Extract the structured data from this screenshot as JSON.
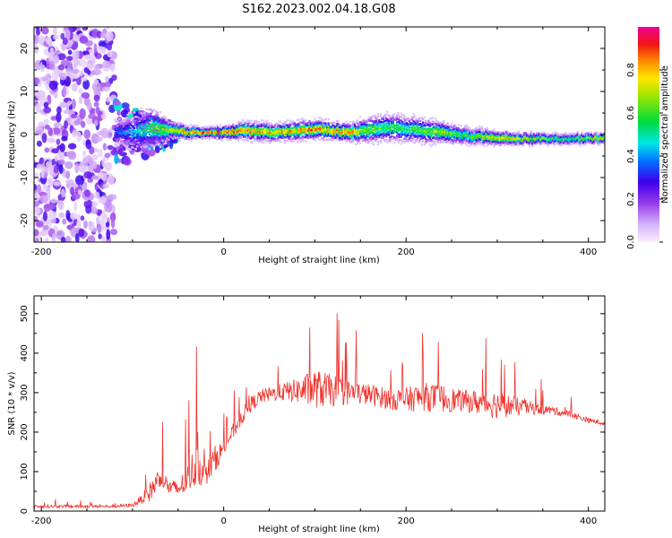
{
  "title": "S162.2023.002.04.18.G08",
  "colors": {
    "snr_line": "#f0332d",
    "background": "#ffffff",
    "axis": "#000000"
  },
  "chart_data": [
    {
      "type": "heatmap",
      "panel": "top",
      "xlabel": "Height of straight line (km)",
      "ylabel": "Frequency (Hz)",
      "xlim": [
        -208,
        418
      ],
      "ylim": [
        -25,
        25
      ],
      "x_ticks": [
        -200,
        0,
        200,
        400
      ],
      "y_ticks": [
        -20,
        -10,
        0,
        10,
        20
      ],
      "x_tick_labels": [
        "-200",
        "0",
        "200",
        "400"
      ],
      "y_tick_labels": [
        "-20",
        "-10",
        "0",
        "10",
        "20"
      ],
      "colorbar": {
        "label": "Normalized spectral amplitude",
        "range": [
          0,
          1
        ],
        "ticks": [
          0.0,
          0.2,
          0.4,
          0.6,
          0.8
        ],
        "tick_labels": [
          "0.0",
          "0.2",
          "0.4",
          "0.6",
          "0.8"
        ],
        "colormap": "rainbow: white-lavender, violet, blue, cyan, green, yellow, orange, red, magenta"
      },
      "ridge": {
        "x": [
          -120,
          -100,
          -80,
          -60,
          -40,
          -20,
          0,
          20,
          40,
          60,
          80,
          100,
          120,
          140,
          160,
          180,
          200,
          220,
          240,
          260,
          280,
          300,
          320,
          340,
          360,
          380,
          400,
          418
        ],
        "freq": [
          0.5,
          0.5,
          1.5,
          1.0,
          0.5,
          0.3,
          0.5,
          0.8,
          0.8,
          0.5,
          1.0,
          1.2,
          0.8,
          0.5,
          1.2,
          1.5,
          1.4,
          0.8,
          0.5,
          -0.2,
          -0.5,
          -0.8,
          -0.9,
          -1.0,
          -1.0,
          -1.0,
          -0.9,
          -0.9
        ],
        "amplitude": [
          0.3,
          0.4,
          0.55,
          0.7,
          0.85,
          0.95,
          0.9,
          0.85,
          0.75,
          0.8,
          0.8,
          0.85,
          0.8,
          0.8,
          0.6,
          0.55,
          0.55,
          0.6,
          0.7,
          0.55,
          0.65,
          0.75,
          0.8,
          0.7,
          0.6,
          0.6,
          0.75,
          0.8
        ],
        "spread_hz": [
          3,
          4,
          5,
          2,
          1.5,
          1.2,
          1.5,
          2,
          2.2,
          2.0,
          2.2,
          2.2,
          2.0,
          2.2,
          3.0,
          3.2,
          3.0,
          2.8,
          2.4,
          2.0,
          1.8,
          1.6,
          1.4,
          1.3,
          1.2,
          1.2,
          1.2,
          1.2
        ]
      },
      "noise_region": {
        "x_range": [
          -208,
          -120
        ],
        "freq_range": [
          -25,
          25
        ]
      }
    },
    {
      "type": "line",
      "panel": "bottom",
      "xlabel": "Height of straight line (km)",
      "ylabel": "SNR (10 * v/v)",
      "xlim": [
        -208,
        418
      ],
      "ylim": [
        0,
        545
      ],
      "x_ticks": [
        -200,
        0,
        200,
        400
      ],
      "y_ticks": [
        0,
        100,
        200,
        300,
        400,
        500
      ],
      "x_tick_labels": [
        "-200",
        "0",
        "200",
        "400"
      ],
      "y_tick_labels": [
        "0",
        "100",
        "200",
        "300",
        "400",
        "500"
      ],
      "series": [
        {
          "x": [
            -208,
            -180,
            -150,
            -120,
            -100,
            -90,
            -80,
            -70,
            -60,
            -50,
            -40,
            -30,
            -20,
            -10,
            0,
            10,
            20,
            30,
            40,
            60,
            80,
            100,
            120,
            140,
            160,
            180,
            200,
            220,
            240,
            260,
            280,
            300,
            320,
            340,
            360,
            380,
            400,
            418
          ],
          "y": [
            12,
            12,
            12,
            12,
            15,
            30,
            50,
            90,
            60,
            55,
            80,
            120,
            90,
            130,
            160,
            200,
            240,
            270,
            290,
            300,
            305,
            310,
            305,
            300,
            295,
            285,
            282,
            290,
            285,
            280,
            275,
            270,
            265,
            260,
            255,
            245,
            230,
            222
          ],
          "noise_amplitude": [
            8,
            8,
            8,
            8,
            10,
            25,
            60,
            60,
            45,
            50,
            80,
            130,
            60,
            80,
            40,
            45,
            45,
            45,
            40,
            45,
            70,
            110,
            90,
            70,
            60,
            60,
            70,
            80,
            80,
            60,
            70,
            80,
            55,
            35,
            25,
            20,
            15,
            12
          ]
        }
      ]
    }
  ]
}
